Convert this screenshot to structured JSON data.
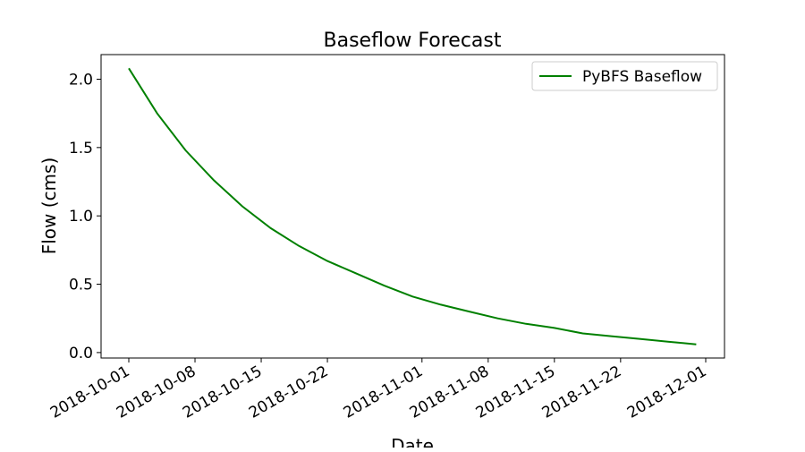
{
  "chart_data": {
    "type": "line",
    "title": "Baseflow Forecast",
    "xlabel": "Date",
    "ylabel": "Flow (cms)",
    "x_ticks": [
      "2018-10-01",
      "2018-10-08",
      "2018-10-15",
      "2018-10-22",
      "2018-11-01",
      "2018-11-08",
      "2018-11-15",
      "2018-11-22",
      "2018-12-01"
    ],
    "y_ticks": [
      0.0,
      0.5,
      1.0,
      1.5,
      2.0
    ],
    "y_tick_labels": [
      "0.0",
      "0.5",
      "1.0",
      "1.5",
      "2.0"
    ],
    "xlim": [
      "2017-09-28",
      "2018-12-03"
    ],
    "ylim": [
      -0.04,
      2.18
    ],
    "grid": false,
    "legend": {
      "placement": "top-right",
      "entries": [
        "PyBFS Baseflow"
      ]
    },
    "series": [
      {
        "name": "PyBFS Baseflow",
        "color": "#008000",
        "x": [
          "2018-10-01",
          "2018-10-04",
          "2018-10-07",
          "2018-10-10",
          "2018-10-13",
          "2018-10-16",
          "2018-10-19",
          "2018-10-22",
          "2018-10-25",
          "2018-10-28",
          "2018-10-31",
          "2018-11-03",
          "2018-11-06",
          "2018-11-09",
          "2018-11-12",
          "2018-11-15",
          "2018-11-18",
          "2018-11-21",
          "2018-11-24",
          "2018-11-27",
          "2018-11-30"
        ],
        "y": [
          2.08,
          1.75,
          1.48,
          1.26,
          1.07,
          0.91,
          0.78,
          0.67,
          0.58,
          0.49,
          0.41,
          0.35,
          0.3,
          0.25,
          0.21,
          0.18,
          0.14,
          0.12,
          0.1,
          0.08,
          0.06
        ]
      }
    ]
  }
}
